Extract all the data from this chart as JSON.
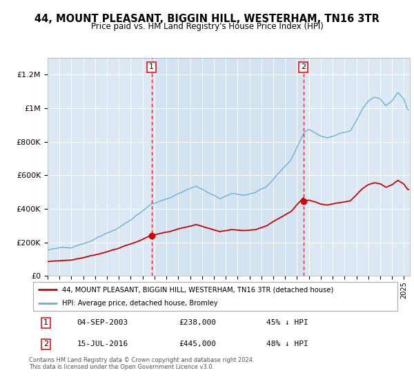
{
  "title": "44, MOUNT PLEASANT, BIGGIN HILL, WESTERHAM, TN16 3TR",
  "subtitle": "Price paid vs. HM Land Registry's House Price Index (HPI)",
  "ylabel_ticks": [
    "£0",
    "£200K",
    "£400K",
    "£600K",
    "£800K",
    "£1M",
    "£1.2M"
  ],
  "ytick_values": [
    0,
    200000,
    400000,
    600000,
    800000,
    1000000,
    1200000
  ],
  "ylim": [
    0,
    1300000
  ],
  "xlim_start": 1995.0,
  "xlim_end": 2025.5,
  "marker1_x": 2003.75,
  "marker1_y": 238000,
  "marker2_x": 2016.54,
  "marker2_y": 445000,
  "legend_line1": "44, MOUNT PLEASANT, BIGGIN HILL, WESTERHAM, TN16 3TR (detached house)",
  "legend_line2": "HPI: Average price, detached house, Bromley",
  "footer": "Contains HM Land Registry data © Crown copyright and database right 2024.\nThis data is licensed under the Open Government Licence v3.0.",
  "ann1_date": "04-SEP-2003",
  "ann1_price": "£238,000",
  "ann1_pct": "45% ↓ HPI",
  "ann2_date": "15-JUL-2016",
  "ann2_price": "£445,000",
  "ann2_pct": "48% ↓ HPI",
  "hpi_color": "#6baed6",
  "price_color": "#cc0000",
  "dashed_color": "#ee1111",
  "plot_bg": "#dce9f5",
  "shade_color": "#c9dcf0"
}
